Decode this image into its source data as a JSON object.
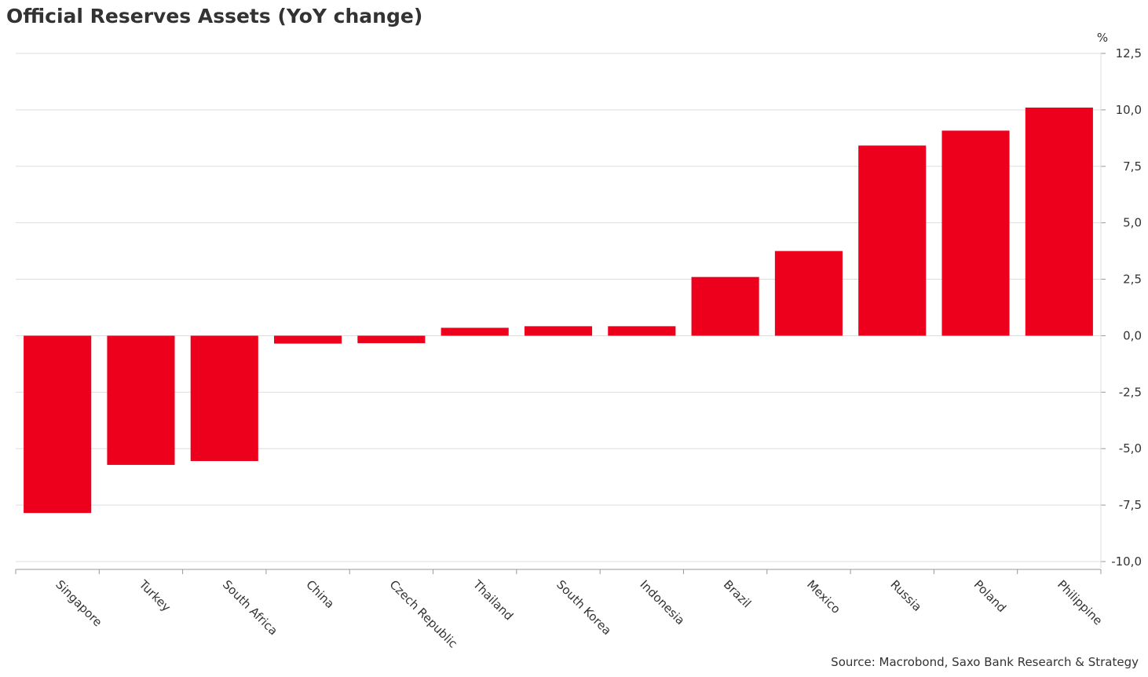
{
  "title": "Official Reserves Assets (YoY change)",
  "source": "Source: Macrobond, Saxo Bank Research & Strategy",
  "colors": {
    "bar": "#ED001B",
    "grid": "#DDDDDD",
    "text": "#333333"
  },
  "chart_data": {
    "type": "bar",
    "title": "Official Reserves Assets (YoY change)",
    "ylabel": "%",
    "ylim": [
      -10,
      12.5
    ],
    "y_ticks": [
      12.5,
      10,
      7.5,
      5,
      2.5,
      0,
      -2.5,
      -5,
      -7.5,
      -10
    ],
    "y_tick_labels": [
      "12,5",
      "10,0",
      "7,5",
      "5,0",
      "2,5",
      "0,0",
      "-2,5",
      "-5,0",
      "-7,5",
      "-10,0"
    ],
    "y_axis_position": "right",
    "grid": true,
    "legend": false,
    "categories": [
      "Singapore",
      "Turkey",
      "South Africa",
      "China",
      "Czech Republic",
      "Thailand",
      "South Korea",
      "Indonesia",
      "Brazil",
      "Mexico",
      "Russia",
      "Poland",
      "Philippine"
    ],
    "values": [
      -7.85,
      -5.72,
      -5.55,
      -0.35,
      -0.33,
      0.35,
      0.42,
      0.42,
      2.6,
      3.75,
      8.42,
      9.08,
      10.1
    ]
  }
}
